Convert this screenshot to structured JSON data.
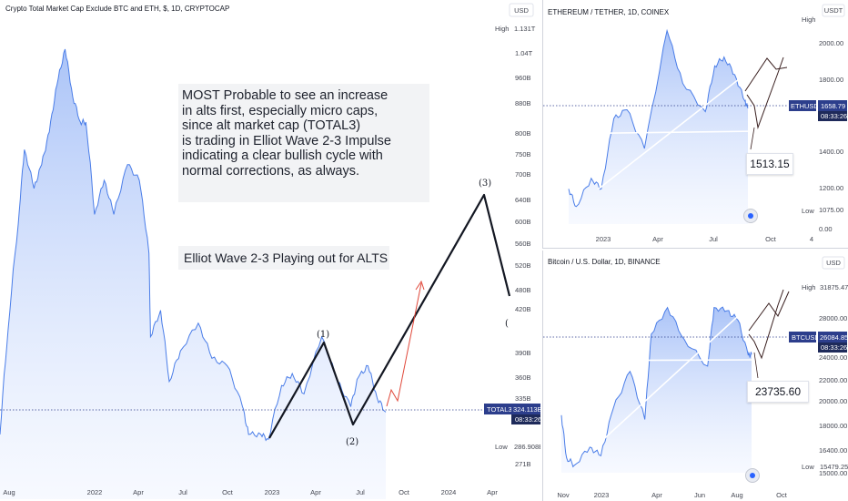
{
  "colors": {
    "line": "#4a7de8",
    "fill_top": "#8fb0f5",
    "fill_bottom": "#e8efff",
    "badge": "#2c3e8c",
    "time_badge": "#1e2a5a",
    "projection": "#131722",
    "red_arrow": "#e0483a",
    "dark_arrow": "#3a2020",
    "white_line": "#ffffff",
    "background": "#ffffff"
  },
  "main": {
    "title": "Crypto Total Market Cap Exclude BTC and ETH, $, 1D, CRYPTOCAP",
    "currency": "USD",
    "y_ticks": [
      "1.04T",
      "960B",
      "880B",
      "800B",
      "750B",
      "700B",
      "640B",
      "600B",
      "560B",
      "520B",
      "480B",
      "420B",
      "390B",
      "360B",
      "335B",
      "271B"
    ],
    "high_label": "High",
    "high_value": "1.131T",
    "low_label": "Low",
    "low_value": "286.908B",
    "symbol": "TOTAL3",
    "last_price": "324.113B",
    "countdown": "08:33:26",
    "x_ticks": [
      "Aug",
      "2022",
      "Apr",
      "Jul",
      "Oct",
      "2023",
      "Apr",
      "Jul",
      "Oct",
      "2024",
      "Apr"
    ],
    "note_lines": [
      "MOST Probable to see an increase",
      "in alts first, especially micro caps,",
      "since alt market cap  (TOTAL3)",
      "is trading in Elliot Wave 2-3 Impulse",
      "indicating a clear bullish cycle with",
      "normal corrections, as always."
    ],
    "wave_note": "Elliot Wave 2-3 Playing out for ALTS",
    "wave_labels": [
      "(1)",
      "(2)",
      "(3)"
    ],
    "edge_glyph": "("
  },
  "eth": {
    "title": "ETHEREUM / TETHER, 1D, COINEX",
    "currency": "USDT",
    "y_ticks": [
      "2000.00",
      "1800.00",
      "1400.00",
      "1200.00",
      "1075.00",
      "0.00"
    ],
    "high_label": "High",
    "low_label": "Low",
    "symbol": "ETHUSDT",
    "last_price": "1658.79",
    "countdown": "08:33:26",
    "x_ticks": [
      "2023",
      "Apr",
      "Jul",
      "Oct",
      "4"
    ],
    "callout": "1513.15"
  },
  "btc": {
    "title": "Bitcoin / U.S. Dollar, 1D, BINANCE",
    "currency": "USD",
    "y_ticks": [
      "28000.00",
      "24000.00",
      "22000.00",
      "20000.00",
      "18000.00",
      "16400.00",
      "15000.00"
    ],
    "high_label": "High",
    "high_value": "31875.47",
    "low_label": "Low",
    "low_value": "15479.25",
    "symbol": "BTCUSD",
    "last_price": "26084.85",
    "countdown": "08:33:26",
    "x_ticks": [
      "Nov",
      "2023",
      "Apr",
      "Jun",
      "Aug",
      "Oct"
    ],
    "callout": "23735.60"
  },
  "chart_data": [
    {
      "type": "area",
      "series": [
        {
          "name": "TOTAL3",
          "x": [
            "2021-07-20",
            "2021-08-05",
            "2021-08-25",
            "2021-09-06",
            "2021-09-25",
            "2021-10-10",
            "2021-10-25",
            "2021-11-09",
            "2021-11-25",
            "2021-12-10",
            "2021-12-25",
            "2022-01-05",
            "2022-01-22",
            "2022-02-10",
            "2022-03-01",
            "2022-03-28",
            "2022-04-20",
            "2022-05-09",
            "2022-05-12",
            "2022-06-01",
            "2022-06-18",
            "2022-07-10",
            "2022-08-14",
            "2022-09-10",
            "2022-10-10",
            "2022-11-09",
            "2022-11-21",
            "2022-12-15",
            "2022-12-30",
            "2023-01-25",
            "2023-02-15",
            "2023-03-10",
            "2023-04-14",
            "2023-05-15",
            "2023-06-10",
            "2023-06-25",
            "2023-07-14",
            "2023-08-01",
            "2023-08-18"
          ],
          "values": [
            300,
            430,
            620,
            800,
            700,
            760,
            850,
            1000,
            1131,
            960,
            880,
            880,
            640,
            720,
            640,
            760,
            720,
            560,
            420,
            460,
            360,
            400,
            440,
            390,
            380,
            330,
            300,
            300,
            295,
            355,
            370,
            345,
            420,
            360,
            330,
            365,
            380,
            340,
            324
          ]
        }
      ],
      "ylabel": "",
      "xlabel": ""
    },
    {
      "type": "area",
      "series": [
        {
          "name": "ETHUSDT",
          "x": [
            "2022-11-09",
            "2022-11-21",
            "2022-12-15",
            "2022-12-31",
            "2023-01-20",
            "2023-02-10",
            "2023-03-10",
            "2023-04-15",
            "2023-05-10",
            "2023-06-15",
            "2023-06-30",
            "2023-07-15",
            "2023-08-01",
            "2023-08-17",
            "2023-08-22"
          ],
          "values": [
            1200,
            1100,
            1260,
            1200,
            1600,
            1650,
            1430,
            2100,
            1800,
            1640,
            1900,
            1950,
            1850,
            1700,
            1658.79
          ]
        }
      ]
    },
    {
      "type": "area",
      "series": [
        {
          "name": "BTCUSD",
          "x": [
            "2022-11-01",
            "2022-11-09",
            "2022-11-21",
            "2022-12-15",
            "2023-01-01",
            "2023-01-20",
            "2023-02-15",
            "2023-03-10",
            "2023-03-20",
            "2023-04-14",
            "2023-05-10",
            "2023-06-15",
            "2023-06-25",
            "2023-07-15",
            "2023-08-01",
            "2023-08-17",
            "2023-08-22"
          ],
          "values": [
            20400,
            16400,
            15700,
            17400,
            16600,
            21000,
            24500,
            20000,
            28000,
            30500,
            27500,
            25000,
            30500,
            30200,
            29300,
            26000,
            26084.85
          ]
        }
      ]
    }
  ]
}
